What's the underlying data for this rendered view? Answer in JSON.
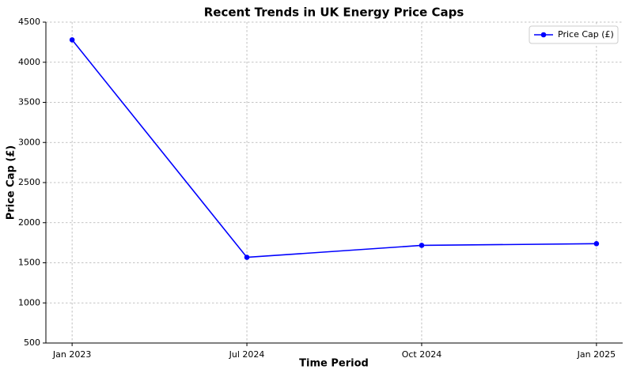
{
  "chart_data": {
    "type": "line",
    "title": "Recent Trends in UK Energy Price Caps",
    "x_label": "Time Period",
    "y_label": "Price Cap (£)",
    "categories": [
      "Jan 2023",
      "Jul 2024",
      "Oct 2024",
      "Jan 2025"
    ],
    "series": [
      {
        "name": "Price Cap (£)",
        "color": "#0000ff",
        "values": [
          4279,
          1568,
          1717,
          1738
        ]
      }
    ],
    "ylim": [
      500,
      4500
    ],
    "yticks": [
      500,
      1000,
      1500,
      2000,
      2500,
      3000,
      3500,
      4000,
      4500
    ],
    "grid": true,
    "legend": "upper right"
  }
}
